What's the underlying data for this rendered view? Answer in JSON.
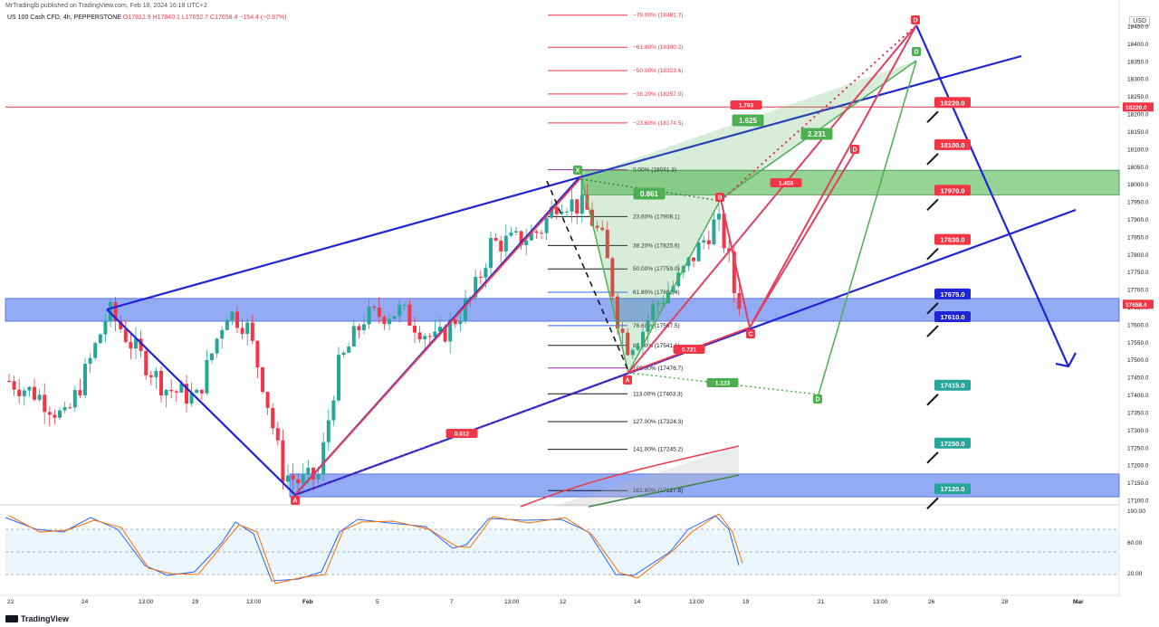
{
  "header": {
    "published": "MrTradinglb published on TradingView.com, Feb 18, 2024 16:18 UTC+2",
    "symbol": "US 100 Cash CFD, 4h, PEPPERSTONE",
    "ohlc": "O17812.9  H17840.1  L17652.7  C17658.4  −154.4 (−0.87%)",
    "currency": "USD"
  },
  "footer": {
    "brand": "TradingView"
  },
  "colors": {
    "up": "#26a69a",
    "down": "#f23645",
    "blue": "#1f24d6",
    "pink": "#e04060",
    "green": "#4caf50",
    "zone": "#6f8df0",
    "greenzone": "#7cc97c"
  },
  "chart_data": {
    "type": "candlestick",
    "ylim": [
      17100,
      18500
    ],
    "price_ticks": [
      18450.0,
      18400.0,
      18350.0,
      18300.0,
      18250.0,
      18200.0,
      18150.0,
      18100.0,
      18050.0,
      18000.0,
      17950.0,
      17900.0,
      17850.0,
      17800.0,
      17750.0,
      17700.0,
      17650.0,
      17600.0,
      17550.0,
      17500.0,
      17450.0,
      17400.0,
      17350.0,
      17300.0,
      17250.0,
      17200.0,
      17150.0,
      17100.0
    ],
    "time_ticks": [
      "22",
      "24",
      "13:00",
      "29",
      "13:00",
      "Feb",
      "5",
      "7",
      "13:00",
      "12",
      "14",
      "13:00",
      "19",
      "21",
      "13:00",
      "26",
      "28",
      "Mar"
    ],
    "oscillator_ticks": [
      "100.00",
      "60.00",
      "20.00"
    ],
    "last_price": "17658.4",
    "marked_price": "18220.0",
    "price_labels": [
      {
        "text": "18220.0",
        "price": 18220,
        "color": "#f23645"
      },
      {
        "text": "18100.0",
        "price": 18100,
        "color": "#f23645"
      },
      {
        "text": "17970.0",
        "price": 17970,
        "color": "#f23645"
      },
      {
        "text": "17830.0",
        "price": 17830,
        "color": "#f23645"
      },
      {
        "text": "17675.0",
        "price": 17675,
        "color": "#1f24d6"
      },
      {
        "text": "17610.0",
        "price": 17610,
        "color": "#1f24d6"
      },
      {
        "text": "17415.0",
        "price": 17415,
        "color": "#26a69a"
      },
      {
        "text": "17250.0",
        "price": 17250,
        "color": "#26a69a"
      },
      {
        "text": "17120.0",
        "price": 17120,
        "color": "#26a69a"
      }
    ],
    "fib_top": [
      {
        "text": "−78.00% (18481.7)",
        "price": 18481.7
      },
      {
        "text": "−61.80% (18390.2)",
        "price": 18390.2
      },
      {
        "text": "−50.00% (18323.6)",
        "price": 18323.6
      },
      {
        "text": "−38.20% (18257.0)",
        "price": 18257.0
      },
      {
        "text": "−23.60% (18174.5)",
        "price": 18174.5
      }
    ],
    "fib_main": [
      {
        "text": "0.00% (18041.3)",
        "price": 18041.3,
        "color": "#9c27b0"
      },
      {
        "text": "23.60% (17908.1)",
        "price": 17908.1,
        "color": "#131722"
      },
      {
        "text": "38.20% (17825.6)",
        "price": 17825.6,
        "color": "#131722"
      },
      {
        "text": "50.00% (17759.0)",
        "price": 17759.0,
        "color": "#131722"
      },
      {
        "text": "61.80% (17692.4)",
        "price": 17692.4,
        "color": "#2962ff"
      },
      {
        "text": "78.60% (17597.5)",
        "price": 17597.5,
        "color": "#2962ff"
      },
      {
        "text": "88.60% (17541.1)",
        "price": 17541.1,
        "color": "#131722"
      },
      {
        "text": "100.00% (17476.7)",
        "price": 17476.7,
        "color": "#9c27b0"
      },
      {
        "text": "113.00% (17403.3)",
        "price": 17403.3,
        "color": "#131722"
      },
      {
        "text": "127.00% (17324.3)",
        "price": 17324.3,
        "color": "#131722"
      },
      {
        "text": "141.00% (17245.2)",
        "price": 17245.2,
        "color": "#131722"
      },
      {
        "text": "161.80% (17127.8)",
        "price": 17127.8,
        "color": "#131722"
      }
    ],
    "ratios": [
      {
        "text": "1.793",
        "color": "#f23645"
      },
      {
        "text": "1.625",
        "color": "#4caf50"
      },
      {
        "text": "2.231",
        "color": "#4caf50"
      },
      {
        "text": "0.861",
        "color": "#4caf50"
      },
      {
        "text": "1.408",
        "color": "#f23645"
      },
      {
        "text": "0.721",
        "color": "#f23645"
      },
      {
        "text": "1.123",
        "color": "#4caf50"
      },
      {
        "text": "0.612",
        "color": "#f23645"
      }
    ],
    "points": [
      "X",
      "A",
      "B",
      "C",
      "D",
      "D",
      "A",
      "D"
    ]
  }
}
